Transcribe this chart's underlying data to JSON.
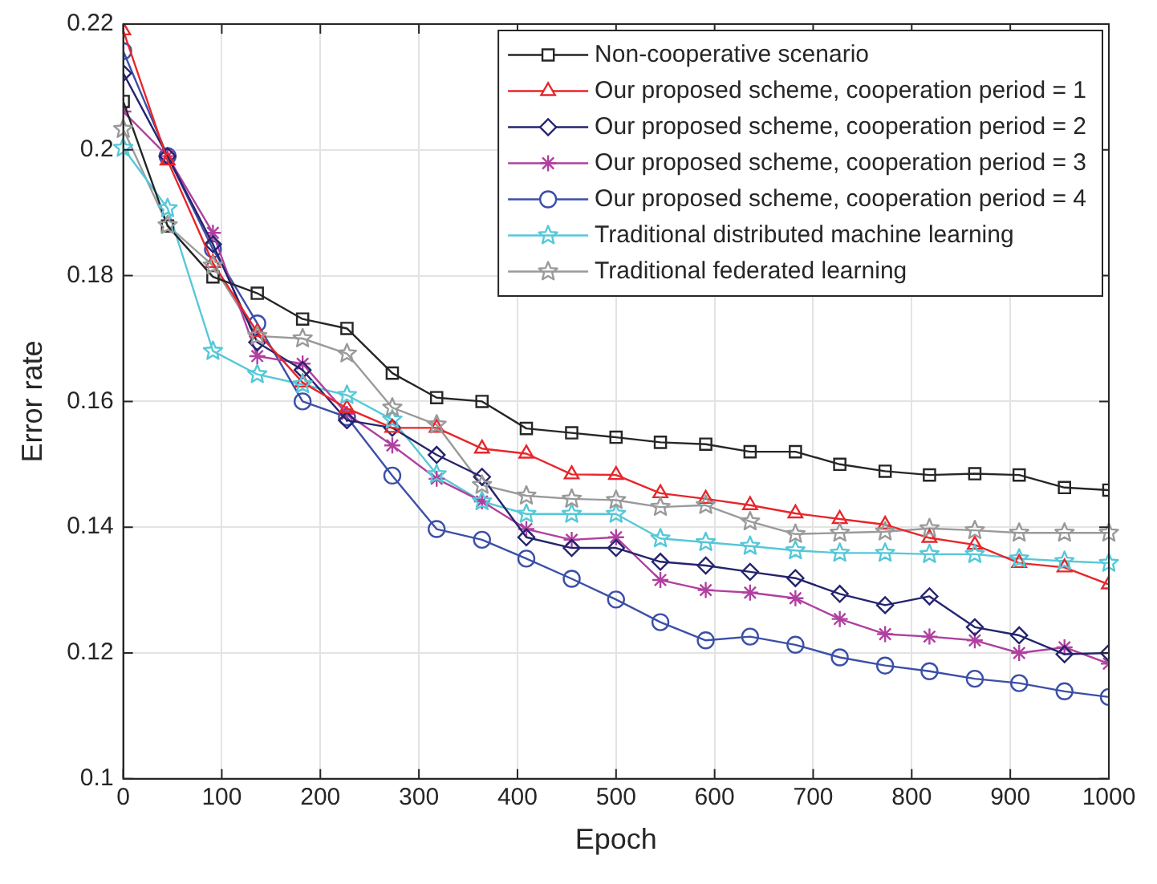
{
  "chart_data": {
    "type": "line",
    "xlabel": "Epoch",
    "ylabel": "Error rate",
    "x": [
      0,
      45,
      91,
      136,
      182,
      227,
      273,
      318,
      364,
      409,
      455,
      500,
      545,
      591,
      636,
      682,
      727,
      773,
      818,
      864,
      909,
      955,
      1000
    ],
    "xlim": [
      0,
      1000
    ],
    "xticks": [
      0,
      100,
      200,
      300,
      400,
      500,
      600,
      700,
      800,
      900,
      1000
    ],
    "ylim": [
      0.1,
      0.22
    ],
    "yticks": [
      0.1,
      0.12,
      0.14,
      0.16,
      0.18,
      0.2,
      0.22
    ],
    "grid": true,
    "legend": "top right",
    "line_style": "solid",
    "series": [
      {
        "name": "Non-cooperative scenario",
        "color": "#262626",
        "marker": "square",
        "values": [
          0.2077,
          0.1879,
          0.1798,
          0.1772,
          0.1731,
          0.1716,
          0.1645,
          0.1606,
          0.16,
          0.1557,
          0.155,
          0.1543,
          0.1535,
          0.1532,
          0.152,
          0.152,
          0.15,
          0.1489,
          0.1483,
          0.1485,
          0.1483,
          0.1463,
          0.1459
        ]
      },
      {
        "name": "Our proposed scheme, cooperation period = 1",
        "color": "#e8262b",
        "marker": "triangle",
        "values": [
          0.219,
          0.1983,
          0.182,
          0.171,
          0.163,
          0.1589,
          0.1558,
          0.1558,
          0.1525,
          0.1517,
          0.1484,
          0.1483,
          0.1454,
          0.1445,
          0.1435,
          0.1422,
          0.1413,
          0.1404,
          0.1383,
          0.1372,
          0.1343,
          0.1336,
          0.1309
        ]
      },
      {
        "name": "Our proposed scheme, cooperation period = 2",
        "color": "#24246e",
        "marker": "diamond",
        "values": [
          0.2122,
          0.199,
          0.185,
          0.1694,
          0.165,
          0.157,
          0.1558,
          0.1515,
          0.148,
          0.1384,
          0.1367,
          0.1367,
          0.1345,
          0.1339,
          0.1329,
          0.1319,
          0.1294,
          0.1276,
          0.129,
          0.1241,
          0.1228,
          0.1198,
          0.12
        ]
      },
      {
        "name": "Our proposed scheme, cooperation period = 3",
        "color": "#b0409f",
        "marker": "cross",
        "values": [
          0.2061,
          0.199,
          0.1868,
          0.1672,
          0.166,
          0.158,
          0.153,
          0.1477,
          0.1441,
          0.1397,
          0.138,
          0.1384,
          0.1316,
          0.13,
          0.1296,
          0.1287,
          0.1254,
          0.123,
          0.1226,
          0.122,
          0.12,
          0.1209,
          0.1183
        ]
      },
      {
        "name": "Our proposed scheme, cooperation period = 4",
        "color": "#3b4fa8",
        "marker": "circle",
        "values": [
          0.2157,
          0.199,
          0.1842,
          0.1724,
          0.16,
          0.1575,
          0.1482,
          0.1397,
          0.138,
          0.135,
          0.1318,
          0.1285,
          0.1249,
          0.122,
          0.1226,
          0.1213,
          0.1193,
          0.118,
          0.1171,
          0.1159,
          0.1152,
          0.1139,
          0.113
        ]
      },
      {
        "name": "Traditional distributed machine learning",
        "color": "#55c8d8",
        "marker": "star",
        "values": [
          0.2003,
          0.1907,
          0.168,
          0.1643,
          0.1627,
          0.161,
          0.1571,
          0.1484,
          0.1441,
          0.1421,
          0.1421,
          0.1421,
          0.1382,
          0.1376,
          0.137,
          0.1363,
          0.1359,
          0.1359,
          0.1357,
          0.1357,
          0.135,
          0.1346,
          0.1343
        ]
      },
      {
        "name": "Traditional federated learning",
        "color": "#9a9a9a",
        "marker": "star",
        "values": [
          0.2033,
          0.188,
          0.1816,
          0.1704,
          0.17,
          0.1676,
          0.159,
          0.1563,
          0.1467,
          0.145,
          0.1445,
          0.1443,
          0.1432,
          0.1435,
          0.1409,
          0.1389,
          0.1391,
          0.1393,
          0.1398,
          0.1395,
          0.1391,
          0.1391,
          0.1391
        ]
      }
    ]
  }
}
